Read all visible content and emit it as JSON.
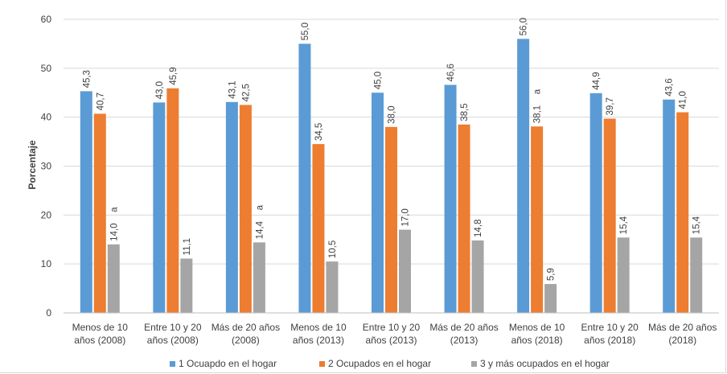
{
  "chart_data": {
    "type": "bar",
    "ylabel": "Porcentaje",
    "ylim": [
      0,
      60
    ],
    "yticks": [
      0,
      10,
      20,
      30,
      40,
      50,
      60
    ],
    "categories": [
      [
        "Menos de 10",
        "años (2008)"
      ],
      [
        "Entre 10 y 20",
        "años (2008)"
      ],
      [
        "Más de 20 años",
        "(2008)"
      ],
      [
        "Menos de 10",
        "años (2013)"
      ],
      [
        "Entre 10 y 20",
        "años (2013)"
      ],
      [
        "Más de 20 años",
        "(2013)"
      ],
      [
        "Menos de 10",
        "años (2018)"
      ],
      [
        "Entre 10 y 20",
        "años (2018)"
      ],
      [
        "Más de 20 años",
        "(2018)"
      ]
    ],
    "series": [
      {
        "name": "1 Ocuapdo en el hogar",
        "color": "#5B9BD5",
        "values": [
          45.3,
          43.0,
          43.1,
          55.0,
          45.0,
          46.6,
          56.0,
          44.9,
          43.6
        ],
        "labels": [
          "45,3",
          "43,0",
          "43,1",
          "55,0",
          "45,0",
          "46,6",
          "56,0",
          "44,9",
          "43,6"
        ],
        "annotations": [
          "",
          "",
          "",
          "",
          "",
          "",
          "",
          "",
          ""
        ]
      },
      {
        "name": "2 Ocupados en el hogar",
        "color": "#ED7D31",
        "values": [
          40.7,
          45.9,
          42.5,
          34.5,
          38.0,
          38.5,
          38.1,
          39.7,
          41.0
        ],
        "labels": [
          "40,7",
          "45,9",
          "42,5",
          "34,5",
          "38,0",
          "38,5",
          "38,1",
          "39,7",
          "41,0"
        ],
        "annotations": [
          "",
          "",
          "",
          "",
          "",
          "",
          "a",
          "",
          ""
        ]
      },
      {
        "name": "3 y más ocupados en el hogar",
        "color": "#A5A5A5",
        "values": [
          14.0,
          11.1,
          14.4,
          10.5,
          17.0,
          14.8,
          5.9,
          15.4,
          15.4
        ],
        "labels": [
          "14,0",
          "11,1",
          "14,4",
          "10,5",
          "17,0",
          "14,8",
          "5,9",
          "15,4",
          "15,4"
        ],
        "annotations": [
          "a",
          "",
          "a",
          "",
          "",
          "",
          "",
          "",
          ""
        ]
      }
    ],
    "grid": true,
    "legend_position": "bottom"
  }
}
